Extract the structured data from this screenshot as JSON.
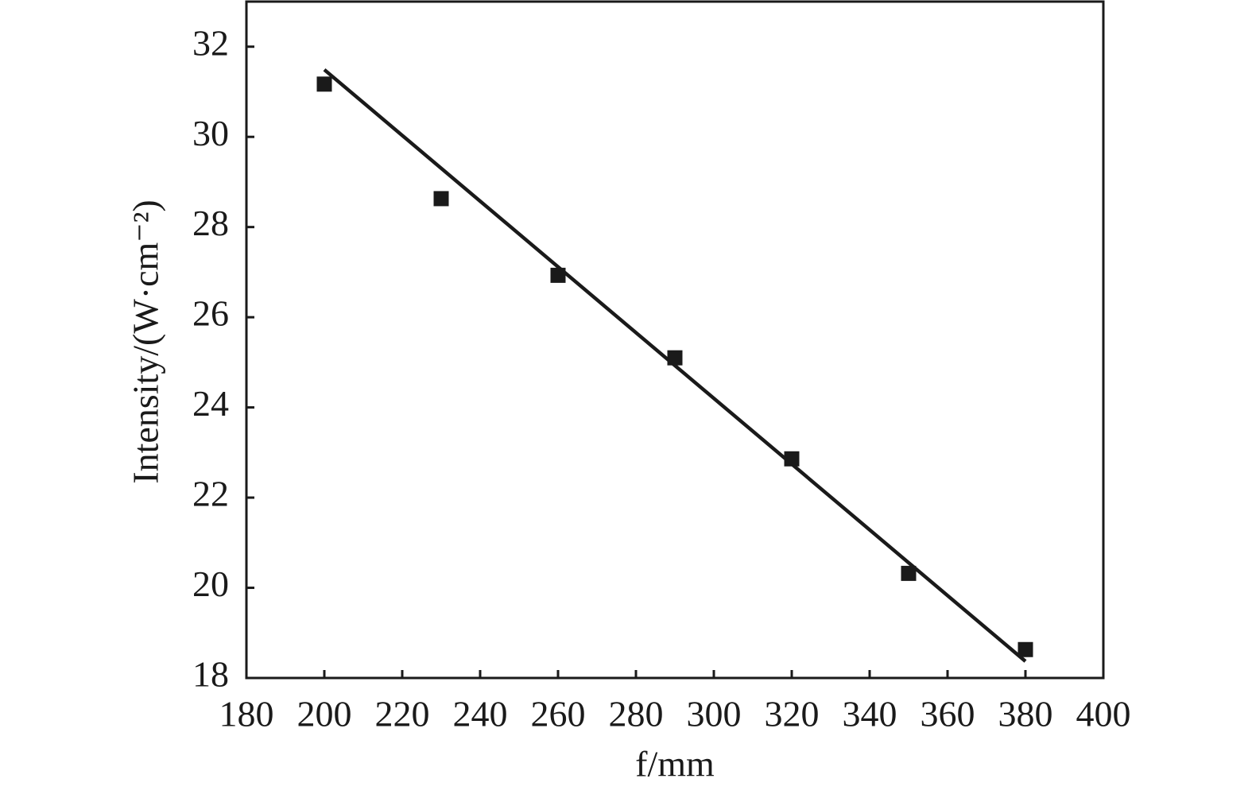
{
  "chart_data": {
    "type": "scatter",
    "x_label": "f/mm",
    "y_label": "Intensity/(W·cm⁻²)",
    "x": [
      200,
      230,
      260,
      290,
      320,
      350,
      380
    ],
    "values": [
      31.17,
      28.63,
      26.93,
      25.1,
      22.86,
      20.32,
      18.63
    ],
    "color": "#1a1a1a",
    "fit_line": {
      "x": [
        200,
        380
      ],
      "values": [
        31.49,
        18.37
      ],
      "color": "#1a1a1a"
    },
    "xlim": [
      180,
      400
    ],
    "xticks": [
      180,
      200,
      220,
      240,
      260,
      280,
      300,
      320,
      340,
      360,
      380,
      400
    ],
    "ylim": [
      18,
      33
    ],
    "yticks": [
      18,
      20,
      22,
      24,
      26,
      28,
      30,
      32
    ]
  }
}
